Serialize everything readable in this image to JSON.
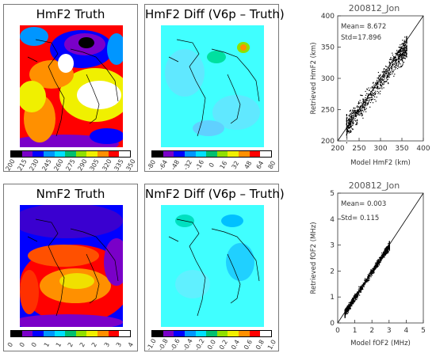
{
  "panels": {
    "hmf2_truth": {
      "title": "HmF2 Truth",
      "ticks": [
        "200",
        "215",
        "230",
        "245",
        "260",
        "275",
        "290",
        "305",
        "320",
        "335",
        "350"
      ]
    },
    "hmf2_diff": {
      "title": "HmF2 Diff (V6p – Truth)",
      "ticks": [
        "-80",
        "-64",
        "-48",
        "-32",
        "-16",
        "0",
        "16",
        "32",
        "48",
        "64",
        "80"
      ]
    },
    "nmf2_truth": {
      "title": "NmF2 Truth",
      "ticks": [
        "0",
        "0",
        "0",
        "1",
        "1",
        "2",
        "2",
        "2",
        "3",
        "3",
        "4"
      ]
    },
    "nmf2_diff": {
      "title": "NmF2 Diff (V6p – Truth)",
      "ticks": [
        "-1.0",
        "-0.8",
        "-0.6",
        "-0.4",
        "-0.2",
        "0.0",
        "0.2",
        "0.4",
        "0.6",
        "0.8",
        "1.0"
      ]
    }
  },
  "colorbar": [
    "#000000",
    "#7a00c8",
    "#0000ff",
    "#0096ff",
    "#00e0ff",
    "#00c070",
    "#90e000",
    "#f0f000",
    "#ff9000",
    "#ff0000",
    "#ffffff"
  ],
  "chart_data": [
    {
      "type": "scatter",
      "title": "200812_Jon",
      "xlabel": "Model HmF2 (km)",
      "ylabel": "Retrieved HmF2 (km)",
      "xlim": [
        200,
        400
      ],
      "ylim": [
        200,
        400
      ],
      "xticks": [
        "200",
        "250",
        "300",
        "350",
        "400"
      ],
      "yticks": [
        "200",
        "250",
        "300",
        "350",
        "400"
      ],
      "stats": {
        "mean": "Mean=  8.672",
        "std": "Std=17.896"
      },
      "cloud": {
        "x_range": [
          220,
          360
        ],
        "intercept": 20,
        "slope": 0.92,
        "spread": 12
      }
    },
    {
      "type": "scatter",
      "title": "200812_Jon",
      "xlabel": "Model fOF2 (MHz)",
      "ylabel": "Retrieved fOF2 (MHz)",
      "xlim": [
        0,
        5
      ],
      "ylim": [
        0,
        5
      ],
      "xticks": [
        "0",
        "1",
        "2",
        "3",
        "4",
        "5"
      ],
      "yticks": [
        "0",
        "1",
        "2",
        "3",
        "4",
        "5"
      ],
      "stats": {
        "mean": "Mean=  0.003",
        "std": "Std=  0.115"
      },
      "cloud": {
        "x_range": [
          0.4,
          3.0
        ],
        "intercept": 0,
        "slope": 1.0,
        "spread": 0.1
      }
    }
  ]
}
